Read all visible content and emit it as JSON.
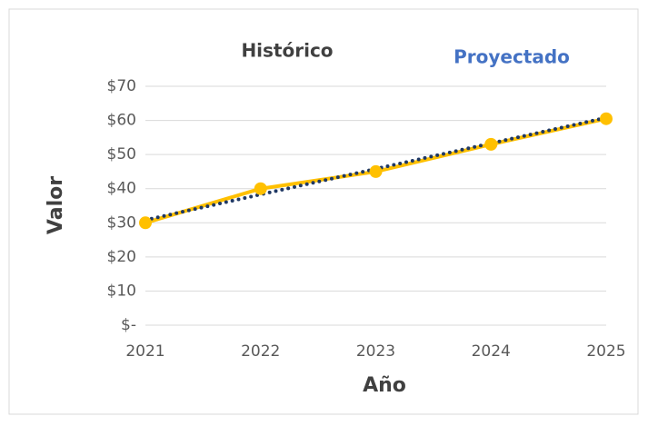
{
  "chart_data": {
    "type": "line",
    "annotations": [
      {
        "text": "Histórico",
        "color": "#404040"
      },
      {
        "text": "Proyectado",
        "color": "#4472c4"
      }
    ],
    "x_label": "Año",
    "y_label": "Valor",
    "categories": [
      "2021",
      "2022",
      "2023",
      "2024",
      "2025"
    ],
    "values": [
      30,
      40,
      45,
      53,
      60.5
    ],
    "color": "#ffc000",
    "trendline": {
      "color": "#1f3864",
      "values": [
        30.8,
        38.3,
        45.8,
        53.3,
        60.8
      ]
    },
    "ylim": [
      0,
      70
    ],
    "yticks": [
      {
        "value": 0,
        "label": "$-"
      },
      {
        "value": 10,
        "label": "$10"
      },
      {
        "value": 20,
        "label": "$20"
      },
      {
        "value": 30,
        "label": "$30"
      },
      {
        "value": 40,
        "label": "$40"
      },
      {
        "value": 50,
        "label": "$50"
      },
      {
        "value": 60,
        "label": "$60"
      },
      {
        "value": 70,
        "label": "$70"
      }
    ],
    "grid": true
  }
}
